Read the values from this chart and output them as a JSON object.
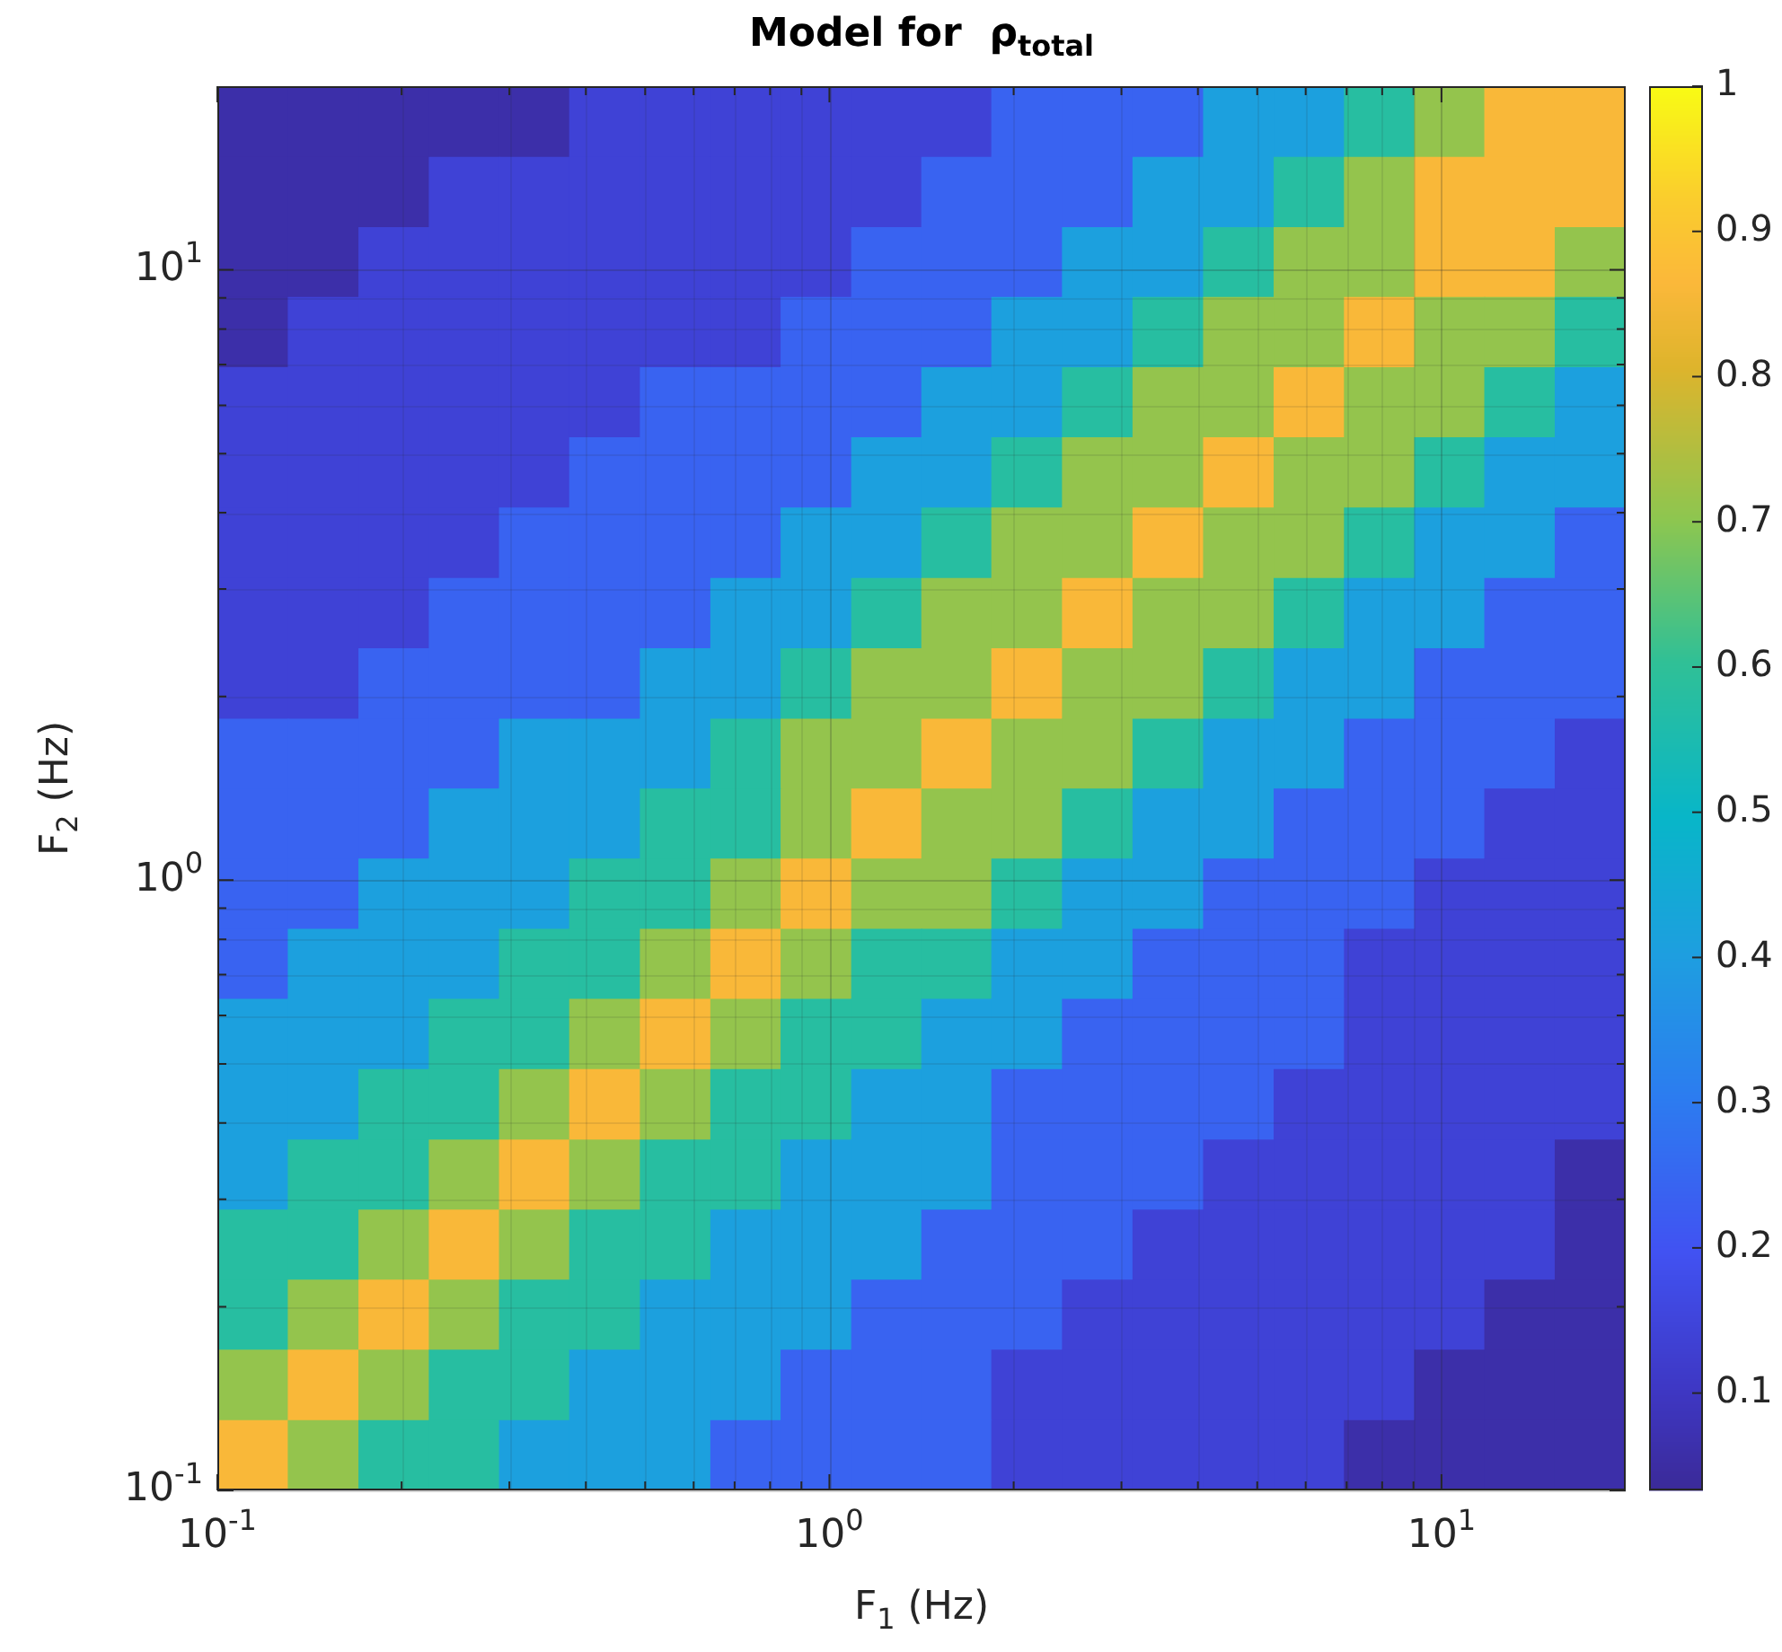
{
  "chart_data": {
    "type": "heatmap",
    "title": "Model for  ρ$_{total}$",
    "xlabel": "F$_{1}$ (Hz)",
    "ylabel": "F$_{2}$ (Hz)",
    "log": "xy",
    "grid": true,
    "xlim": [
      0.1,
      20
    ],
    "ylim": [
      0.1,
      20
    ],
    "xticks": [
      {
        "value": 0.1,
        "label": "10$^{-1}$"
      },
      {
        "value": 0.2,
        "label": null
      },
      {
        "value": 0.3,
        "label": null
      },
      {
        "value": 0.4,
        "label": null
      },
      {
        "value": 0.5,
        "label": null
      },
      {
        "value": 0.6,
        "label": null
      },
      {
        "value": 0.7,
        "label": null
      },
      {
        "value": 0.8,
        "label": null
      },
      {
        "value": 0.9,
        "label": null
      },
      {
        "value": 1,
        "label": "10$^{0}$"
      },
      {
        "value": 2,
        "label": null
      },
      {
        "value": 3,
        "label": null
      },
      {
        "value": 4,
        "label": null
      },
      {
        "value": 5,
        "label": null
      },
      {
        "value": 6,
        "label": null
      },
      {
        "value": 7,
        "label": null
      },
      {
        "value": 8,
        "label": null
      },
      {
        "value": 9,
        "label": null
      },
      {
        "value": 10,
        "label": "10$^{1}$"
      }
    ],
    "yticks": [
      {
        "value": 0.1,
        "label": "10$^{-1}$"
      },
      {
        "value": 0.2,
        "label": null
      },
      {
        "value": 0.3,
        "label": null
      },
      {
        "value": 0.4,
        "label": null
      },
      {
        "value": 0.5,
        "label": null
      },
      {
        "value": 0.6,
        "label": null
      },
      {
        "value": 0.7,
        "label": null
      },
      {
        "value": 0.8,
        "label": null
      },
      {
        "value": 0.9,
        "label": null
      },
      {
        "value": 1,
        "label": "10$^{0}$"
      },
      {
        "value": 2,
        "label": null
      },
      {
        "value": 3,
        "label": null
      },
      {
        "value": 4,
        "label": null
      },
      {
        "value": 5,
        "label": null
      },
      {
        "value": 6,
        "label": null
      },
      {
        "value": 7,
        "label": null
      },
      {
        "value": 8,
        "label": null
      },
      {
        "value": 9,
        "label": null
      },
      {
        "value": 10,
        "label": "10$^{1}$"
      }
    ],
    "x": [
      0.114,
      0.149,
      0.194,
      0.253,
      0.329,
      0.429,
      0.56,
      0.729,
      0.95,
      1.24,
      1.61,
      2.1,
      2.74,
      3.57,
      4.66,
      6.07,
      7.91,
      10.3,
      13.4,
      17.5
    ],
    "y": [
      17.5,
      13.4,
      10.3,
      7.91,
      6.07,
      4.66,
      3.57,
      2.74,
      2.1,
      1.61,
      1.24,
      0.95,
      0.729,
      0.56,
      0.429,
      0.329,
      0.253,
      0.194,
      0.149,
      0.114
    ],
    "clim": [
      0.033,
      1
    ],
    "cticks": [
      0.1,
      0.2,
      0.3,
      0.4,
      0.5,
      0.6,
      0.7,
      0.8,
      0.9,
      1
    ],
    "cells": [
      [
        0.06,
        0.06,
        0.06,
        0.06,
        0.06,
        0.14,
        0.14,
        0.14,
        0.14,
        0.14,
        0.14,
        0.24,
        0.24,
        0.24,
        0.41,
        0.41,
        0.58,
        0.71,
        0.86,
        0.86
      ],
      [
        0.06,
        0.06,
        0.06,
        0.14,
        0.14,
        0.14,
        0.14,
        0.14,
        0.14,
        0.14,
        0.24,
        0.24,
        0.24,
        0.41,
        0.41,
        0.58,
        0.71,
        0.86,
        0.86,
        0.86
      ],
      [
        0.06,
        0.06,
        0.14,
        0.14,
        0.14,
        0.14,
        0.14,
        0.14,
        0.14,
        0.24,
        0.24,
        0.24,
        0.41,
        0.41,
        0.58,
        0.71,
        0.71,
        0.86,
        0.86,
        0.71
      ],
      [
        0.06,
        0.14,
        0.14,
        0.14,
        0.14,
        0.14,
        0.14,
        0.14,
        0.24,
        0.24,
        0.24,
        0.41,
        0.41,
        0.58,
        0.71,
        0.71,
        0.86,
        0.71,
        0.71,
        0.58
      ],
      [
        0.14,
        0.14,
        0.14,
        0.14,
        0.14,
        0.14,
        0.24,
        0.24,
        0.24,
        0.24,
        0.41,
        0.41,
        0.58,
        0.71,
        0.71,
        0.86,
        0.71,
        0.71,
        0.58,
        0.41
      ],
      [
        0.14,
        0.14,
        0.14,
        0.14,
        0.14,
        0.24,
        0.24,
        0.24,
        0.24,
        0.41,
        0.41,
        0.58,
        0.71,
        0.71,
        0.86,
        0.71,
        0.71,
        0.58,
        0.41,
        0.41
      ],
      [
        0.14,
        0.14,
        0.14,
        0.14,
        0.24,
        0.24,
        0.24,
        0.24,
        0.41,
        0.41,
        0.58,
        0.71,
        0.71,
        0.86,
        0.71,
        0.71,
        0.58,
        0.41,
        0.41,
        0.24
      ],
      [
        0.14,
        0.14,
        0.14,
        0.24,
        0.24,
        0.24,
        0.24,
        0.41,
        0.41,
        0.58,
        0.71,
        0.71,
        0.86,
        0.71,
        0.71,
        0.58,
        0.41,
        0.41,
        0.24,
        0.24
      ],
      [
        0.14,
        0.14,
        0.24,
        0.24,
        0.24,
        0.24,
        0.41,
        0.41,
        0.58,
        0.71,
        0.71,
        0.86,
        0.71,
        0.71,
        0.58,
        0.41,
        0.41,
        0.24,
        0.24,
        0.24
      ],
      [
        0.24,
        0.24,
        0.24,
        0.24,
        0.41,
        0.41,
        0.41,
        0.58,
        0.71,
        0.71,
        0.86,
        0.71,
        0.71,
        0.58,
        0.41,
        0.41,
        0.24,
        0.24,
        0.24,
        0.14
      ],
      [
        0.24,
        0.24,
        0.24,
        0.41,
        0.41,
        0.41,
        0.58,
        0.58,
        0.71,
        0.86,
        0.71,
        0.71,
        0.58,
        0.41,
        0.41,
        0.24,
        0.24,
        0.24,
        0.14,
        0.14
      ],
      [
        0.24,
        0.24,
        0.41,
        0.41,
        0.41,
        0.58,
        0.58,
        0.71,
        0.86,
        0.71,
        0.71,
        0.58,
        0.41,
        0.41,
        0.24,
        0.24,
        0.24,
        0.14,
        0.14,
        0.14
      ],
      [
        0.24,
        0.41,
        0.41,
        0.41,
        0.58,
        0.58,
        0.71,
        0.86,
        0.71,
        0.58,
        0.58,
        0.41,
        0.41,
        0.24,
        0.24,
        0.24,
        0.14,
        0.14,
        0.14,
        0.14
      ],
      [
        0.41,
        0.41,
        0.41,
        0.58,
        0.58,
        0.71,
        0.86,
        0.71,
        0.58,
        0.58,
        0.41,
        0.41,
        0.24,
        0.24,
        0.24,
        0.24,
        0.14,
        0.14,
        0.14,
        0.14
      ],
      [
        0.41,
        0.41,
        0.58,
        0.58,
        0.71,
        0.86,
        0.71,
        0.58,
        0.58,
        0.41,
        0.41,
        0.24,
        0.24,
        0.24,
        0.24,
        0.14,
        0.14,
        0.14,
        0.14,
        0.14
      ],
      [
        0.41,
        0.58,
        0.58,
        0.71,
        0.86,
        0.71,
        0.58,
        0.58,
        0.41,
        0.41,
        0.41,
        0.24,
        0.24,
        0.24,
        0.14,
        0.14,
        0.14,
        0.14,
        0.14,
        0.06
      ],
      [
        0.58,
        0.58,
        0.71,
        0.86,
        0.71,
        0.58,
        0.58,
        0.41,
        0.41,
        0.41,
        0.24,
        0.24,
        0.24,
        0.14,
        0.14,
        0.14,
        0.14,
        0.14,
        0.14,
        0.06
      ],
      [
        0.58,
        0.71,
        0.86,
        0.71,
        0.58,
        0.58,
        0.41,
        0.41,
        0.41,
        0.24,
        0.24,
        0.24,
        0.14,
        0.14,
        0.14,
        0.14,
        0.14,
        0.14,
        0.06,
        0.06
      ],
      [
        0.71,
        0.86,
        0.71,
        0.58,
        0.58,
        0.41,
        0.41,
        0.41,
        0.24,
        0.24,
        0.24,
        0.14,
        0.14,
        0.14,
        0.14,
        0.14,
        0.14,
        0.06,
        0.06,
        0.06
      ],
      [
        0.86,
        0.71,
        0.58,
        0.58,
        0.41,
        0.41,
        0.41,
        0.24,
        0.24,
        0.24,
        0.24,
        0.14,
        0.14,
        0.14,
        0.14,
        0.14,
        0.06,
        0.06,
        0.06,
        0.06
      ]
    ]
  }
}
